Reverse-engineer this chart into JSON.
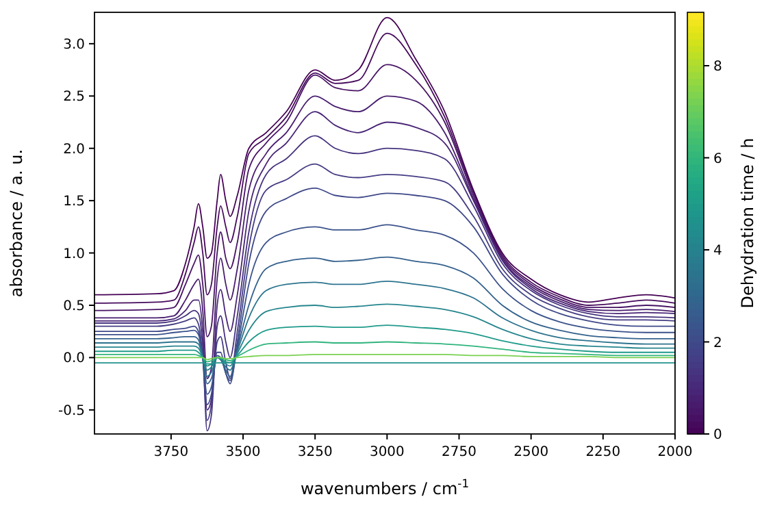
{
  "chart_data": {
    "type": "line",
    "xlabel": "wavenumbers / cm$^{-1}$",
    "ylabel": "absorbance / a. u.",
    "clabel": "Dehydration time / h",
    "x": [
      4016,
      3800,
      3740,
      3700,
      3670,
      3655,
      3640,
      3625,
      3610,
      3590,
      3578,
      3560,
      3545,
      3520,
      3480,
      3420,
      3350,
      3250,
      3180,
      3100,
      3000,
      2900,
      2800,
      2700,
      2600,
      2500,
      2400,
      2300,
      2200,
      2100,
      2000
    ],
    "xlim": [
      4016,
      2000
    ],
    "xticks": [
      3750,
      3500,
      3250,
      3000,
      2750,
      2500,
      2250,
      2000
    ],
    "ylim": [
      -0.73,
      3.3
    ],
    "yticks": [
      -0.5,
      {
        "value": 0,
        "label": "0.0"
      },
      0.5,
      {
        "value": 1,
        "label": "1.0"
      },
      1.5,
      {
        "value": 2,
        "label": "2.0"
      },
      2.5,
      {
        "value": 3,
        "label": "3.0"
      }
    ],
    "clim": [
      0,
      9.16
    ],
    "cticks": [
      0,
      2,
      4,
      6,
      8
    ],
    "grid": false,
    "marker": "none",
    "line_style": "solid",
    "series": [
      {
        "color": "#440154",
        "values": [
          0.6,
          0.61,
          0.64,
          0.9,
          1.25,
          1.47,
          1.25,
          0.95,
          1.0,
          1.5,
          1.75,
          1.5,
          1.35,
          1.55,
          2.0,
          2.15,
          2.35,
          2.75,
          2.65,
          2.75,
          3.25,
          2.85,
          2.35,
          1.6,
          1.0,
          0.75,
          0.6,
          0.53,
          0.57,
          0.6,
          0.57
        ]
      },
      {
        "color": "#450a5c",
        "values": [
          0.52,
          0.53,
          0.55,
          0.8,
          1.1,
          1.25,
          1.0,
          0.6,
          0.7,
          1.25,
          1.45,
          1.25,
          1.1,
          1.35,
          1.95,
          2.1,
          2.3,
          2.72,
          2.62,
          2.65,
          3.1,
          2.8,
          2.3,
          1.58,
          0.98,
          0.72,
          0.58,
          0.5,
          0.52,
          0.55,
          0.52
        ]
      },
      {
        "color": "#471365",
        "values": [
          0.45,
          0.46,
          0.48,
          0.7,
          0.9,
          0.98,
          0.7,
          0.2,
          0.3,
          1.0,
          1.2,
          0.95,
          0.85,
          1.1,
          1.8,
          2.05,
          2.25,
          2.7,
          2.58,
          2.55,
          2.8,
          2.65,
          2.25,
          1.55,
          0.96,
          0.7,
          0.56,
          0.48,
          0.48,
          0.5,
          0.48
        ]
      },
      {
        "color": "#481d6f",
        "values": [
          0.38,
          0.38,
          0.4,
          0.55,
          0.7,
          0.75,
          0.45,
          -0.2,
          -0.1,
          0.75,
          0.95,
          0.7,
          0.55,
          0.85,
          1.6,
          1.95,
          2.15,
          2.5,
          2.4,
          2.35,
          2.5,
          2.45,
          2.15,
          1.52,
          0.94,
          0.68,
          0.54,
          0.46,
          0.45,
          0.46,
          0.44
        ]
      },
      {
        "color": "#482576",
        "values": [
          0.35,
          0.35,
          0.37,
          0.45,
          0.55,
          0.55,
          0.25,
          -0.5,
          -0.4,
          0.5,
          0.65,
          0.4,
          0.25,
          0.6,
          1.4,
          1.85,
          2.05,
          2.35,
          2.22,
          2.15,
          2.25,
          2.2,
          2.05,
          1.5,
          0.93,
          0.66,
          0.52,
          0.44,
          0.42,
          0.43,
          0.42
        ]
      },
      {
        "color": "#46327e",
        "values": [
          0.33,
          0.33,
          0.35,
          0.4,
          0.45,
          0.42,
          0.1,
          -0.7,
          -0.55,
          0.3,
          0.4,
          0.15,
          0.0,
          0.4,
          1.2,
          1.75,
          1.9,
          2.12,
          2.0,
          1.95,
          2.0,
          1.98,
          1.9,
          1.45,
          0.9,
          0.64,
          0.5,
          0.42,
          0.39,
          0.39,
          0.38
        ]
      },
      {
        "color": "#453d84",
        "values": [
          0.3,
          0.3,
          0.32,
          0.35,
          0.38,
          0.32,
          0.0,
          -0.6,
          -0.45,
          0.15,
          0.2,
          -0.05,
          -0.2,
          0.25,
          1.05,
          1.6,
          1.7,
          1.85,
          1.75,
          1.72,
          1.75,
          1.73,
          1.68,
          1.35,
          0.85,
          0.6,
          0.47,
          0.39,
          0.36,
          0.36,
          0.35
        ]
      },
      {
        "color": "#3f4889",
        "values": [
          0.25,
          0.25,
          0.27,
          0.28,
          0.3,
          0.25,
          0.0,
          -0.45,
          -0.35,
          0.05,
          0.05,
          -0.15,
          -0.25,
          0.15,
          0.9,
          1.4,
          1.52,
          1.62,
          1.55,
          1.53,
          1.57,
          1.55,
          1.5,
          1.25,
          0.8,
          0.55,
          0.42,
          0.35,
          0.31,
          0.3,
          0.3
        ]
      },
      {
        "color": "#3b528b",
        "values": [
          0.22,
          0.22,
          0.24,
          0.25,
          0.26,
          0.22,
          0.0,
          -0.35,
          -0.28,
          0.02,
          0.0,
          -0.15,
          -0.22,
          0.1,
          0.7,
          1.1,
          1.2,
          1.25,
          1.22,
          1.22,
          1.27,
          1.22,
          1.17,
          1.0,
          0.66,
          0.45,
          0.34,
          0.28,
          0.25,
          0.24,
          0.24
        ]
      },
      {
        "color": "#34618d",
        "values": [
          0.18,
          0.18,
          0.19,
          0.2,
          0.2,
          0.17,
          0.0,
          -0.25,
          -0.2,
          0.0,
          -0.02,
          -0.12,
          -0.18,
          0.08,
          0.5,
          0.85,
          0.92,
          0.95,
          0.92,
          0.93,
          0.96,
          0.92,
          0.88,
          0.76,
          0.5,
          0.34,
          0.26,
          0.21,
          0.19,
          0.18,
          0.18
        ]
      },
      {
        "color": "#2c738e",
        "values": [
          0.14,
          0.14,
          0.15,
          0.15,
          0.15,
          0.13,
          0.0,
          -0.18,
          -0.14,
          0.0,
          -0.02,
          -0.09,
          -0.12,
          0.06,
          0.38,
          0.64,
          0.7,
          0.72,
          0.7,
          0.7,
          0.73,
          0.7,
          0.66,
          0.57,
          0.38,
          0.26,
          0.19,
          0.16,
          0.14,
          0.13,
          0.13
        ]
      },
      {
        "color": "#26858e",
        "values": [
          0.1,
          0.1,
          0.11,
          0.11,
          0.11,
          0.09,
          0.0,
          -0.12,
          -0.09,
          0.0,
          -0.01,
          -0.06,
          -0.08,
          0.04,
          0.26,
          0.44,
          0.48,
          0.5,
          0.48,
          0.49,
          0.51,
          0.49,
          0.46,
          0.39,
          0.27,
          0.18,
          0.13,
          0.11,
          0.1,
          0.09,
          0.09
        ]
      },
      {
        "color": "#1f9a8a",
        "values": [
          0.06,
          0.06,
          0.07,
          0.07,
          0.07,
          0.05,
          0.0,
          -0.08,
          -0.06,
          0.0,
          -0.01,
          -0.04,
          -0.05,
          0.02,
          0.15,
          0.26,
          0.29,
          0.3,
          0.29,
          0.29,
          0.31,
          0.29,
          0.27,
          0.23,
          0.16,
          0.11,
          0.08,
          0.06,
          0.05,
          0.05,
          0.05
        ]
      },
      {
        "color": "#2fb47c",
        "values": [
          0.03,
          0.03,
          0.03,
          0.03,
          0.03,
          0.02,
          0.0,
          -0.04,
          -0.03,
          0.0,
          0.0,
          -0.02,
          -0.03,
          0.01,
          0.07,
          0.13,
          0.14,
          0.15,
          0.14,
          0.14,
          0.15,
          0.14,
          0.13,
          0.11,
          0.08,
          0.05,
          0.04,
          0.03,
          0.02,
          0.02,
          0.02
        ]
      },
      {
        "color": "#7ad151",
        "values": [
          0.0,
          0.0,
          0.0,
          0.0,
          0.0,
          0.0,
          0.0,
          -0.02,
          -0.01,
          0.0,
          0.0,
          -0.01,
          -0.01,
          0.0,
          0.01,
          0.02,
          0.02,
          0.03,
          0.03,
          0.03,
          0.03,
          0.03,
          0.03,
          0.02,
          0.02,
          0.01,
          0.01,
          0.01,
          0.0,
          0.0,
          0.0
        ]
      },
      {
        "color": "#21918c",
        "values": [
          -0.05,
          -0.05,
          -0.05,
          -0.05,
          -0.05,
          -0.05,
          -0.05,
          -0.06,
          -0.06,
          -0.05,
          -0.05,
          -0.05,
          -0.05,
          -0.05,
          -0.05,
          -0.05,
          -0.05,
          -0.05,
          -0.05,
          -0.05,
          -0.05,
          -0.05,
          -0.05,
          -0.05,
          -0.05,
          -0.05,
          -0.05,
          -0.05,
          -0.05,
          -0.05,
          -0.05
        ]
      }
    ]
  }
}
